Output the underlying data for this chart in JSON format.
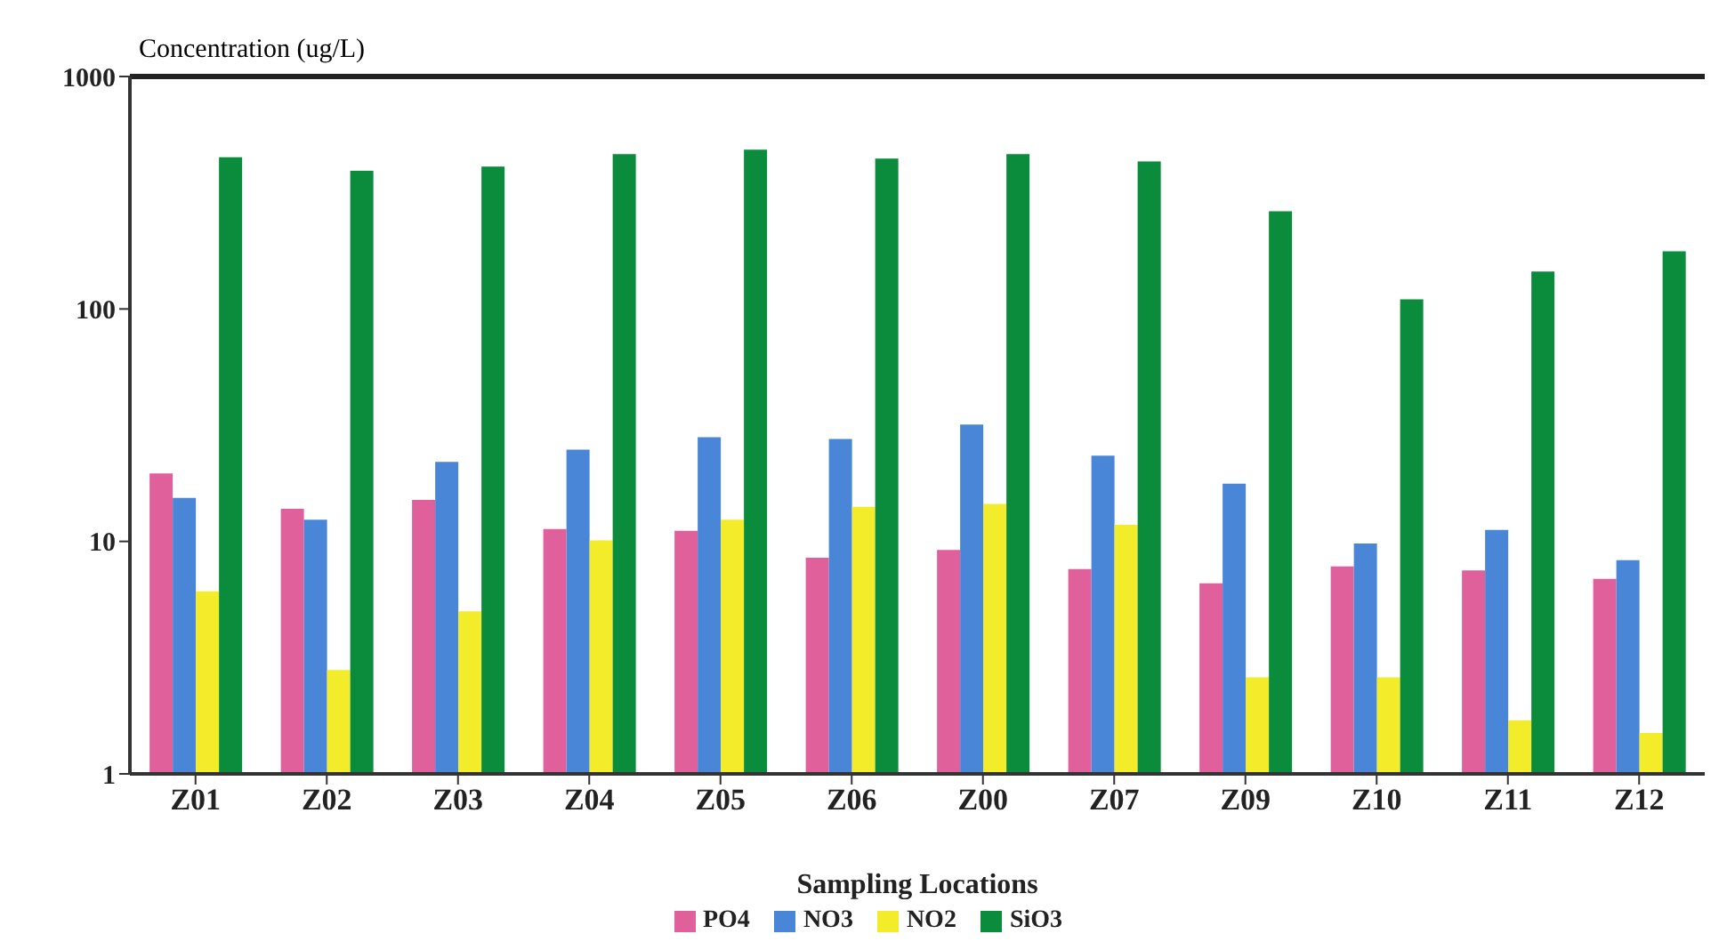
{
  "chart_data": {
    "type": "bar",
    "ylabel": "Concentration (ug/L)",
    "xlabel": "Sampling Locations",
    "categories": [
      "Z01",
      "Z02",
      "Z03",
      "Z04",
      "Z05",
      "Z06",
      "Z00",
      "Z07",
      "Z09",
      "Z10",
      "Z11",
      "Z12"
    ],
    "series": [
      {
        "name": "PO4",
        "color": "#e0609c",
        "values": [
          19.6,
          13.8,
          15.1,
          11.3,
          11.1,
          8.5,
          9.2,
          7.6,
          6.6,
          7.8,
          7.5,
          6.9
        ]
      },
      {
        "name": "NO3",
        "color": "#4a86d8",
        "values": [
          15.4,
          12.4,
          22,
          24.8,
          28.1,
          27.6,
          31.8,
          23.4,
          17.7,
          9.8,
          11.2,
          8.3
        ]
      },
      {
        "name": "NO2",
        "color": "#f2ec2a",
        "values": [
          6.1,
          2.8,
          5.0,
          10.1,
          12.4,
          14.1,
          14.5,
          11.8,
          2.6,
          2.6,
          1.7,
          1.5
        ]
      },
      {
        "name": "SiO3",
        "color": "#0a8c3c",
        "values": [
          450,
          393,
          410,
          464,
          484,
          444,
          464,
          431,
          263,
          110,
          145,
          177
        ]
      }
    ],
    "log": "y",
    "ylim": [
      1,
      1000
    ],
    "yticks": [
      1,
      10,
      100,
      1000
    ],
    "grid": false,
    "legend": "bottom"
  }
}
